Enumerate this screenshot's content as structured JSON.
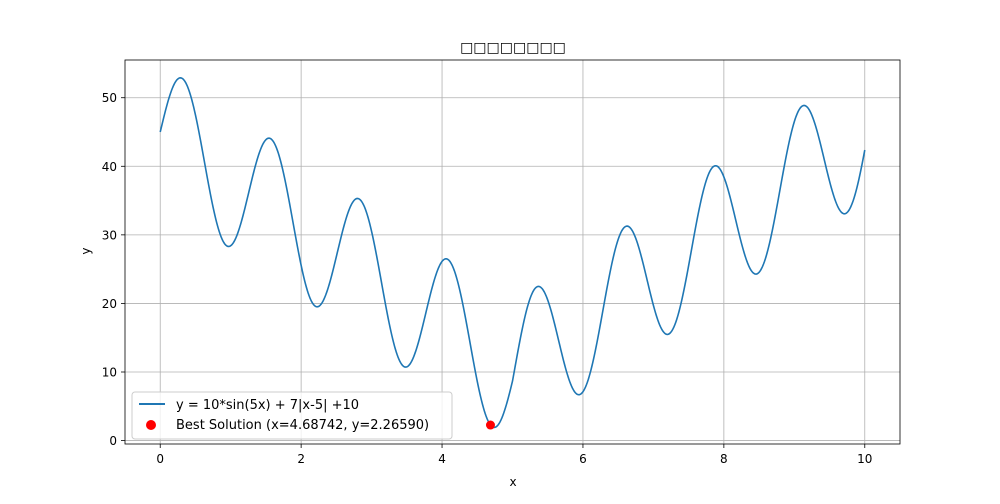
{
  "chart_data": {
    "type": "line",
    "title": "□□□□□□□□",
    "xlabel": "x",
    "ylabel": "y",
    "xlim": [
      -0.5,
      10.5
    ],
    "ylim": [
      -0.5,
      55.5
    ],
    "xticks": [
      0,
      2,
      4,
      6,
      8,
      10
    ],
    "yticks": [
      0,
      10,
      20,
      30,
      40,
      50
    ],
    "grid": true,
    "legend_position": "lower-left",
    "series": [
      {
        "name": "y = 10*sin(5x) + 7|x-5| +10",
        "kind": "line",
        "color": "#1f77b4",
        "function": "10*sin(5x) + 7|x-5| + 10",
        "domain": [
          0,
          10
        ]
      },
      {
        "name": "Best Solution (x=4.68742, y=2.26590)",
        "kind": "scatter",
        "color": "#ff0000",
        "points": [
          {
            "x": 4.68742,
            "y": 2.2659
          }
        ]
      }
    ]
  },
  "colors": {
    "line": "#1f77b4",
    "marker": "#ff0000",
    "grid": "#b0b0b0",
    "axes": "#000000"
  }
}
